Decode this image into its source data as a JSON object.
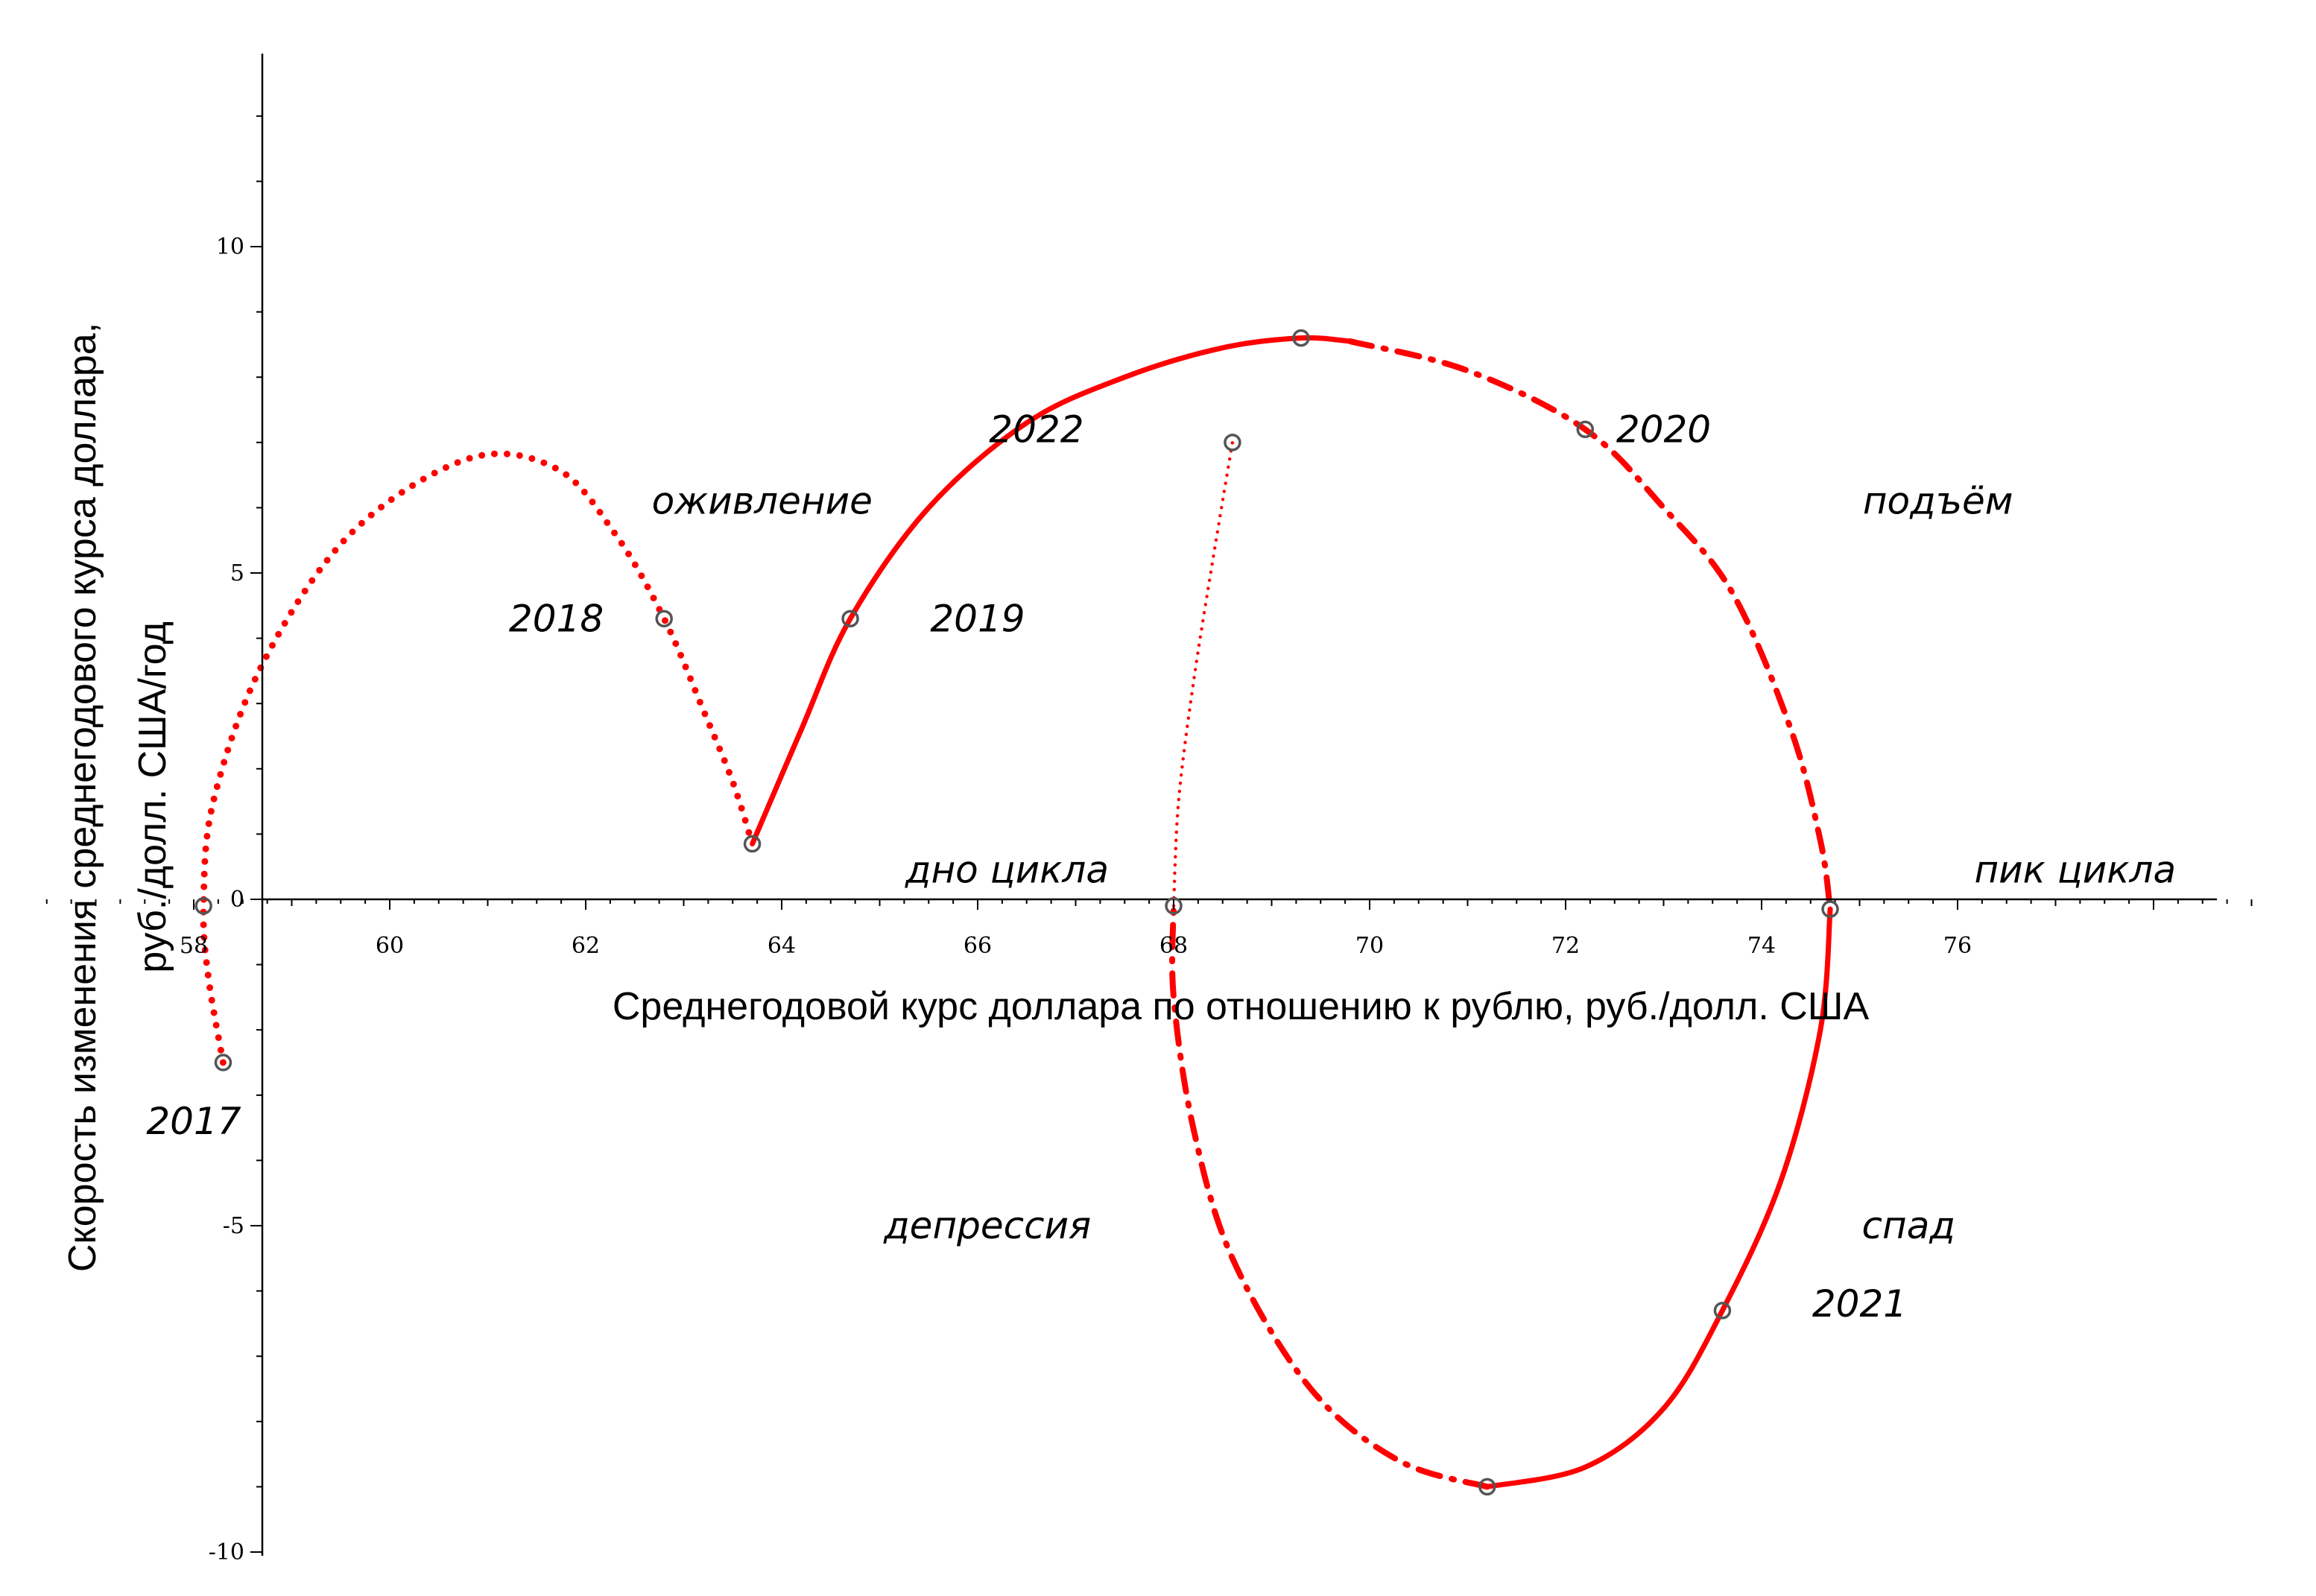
{
  "chart_data": {
    "type": "line",
    "title": "",
    "xlabel": "Среднегодовой курс доллара по отношению к рублю, руб./долл. США",
    "ylabel_lines": [
      "Скорость изменения среднегодового курса доллара,",
      "руб./долл. США/год"
    ],
    "xlim": [
      56.2,
      79.3
    ],
    "ylim": [
      -10,
      13
    ],
    "x_ticks": [
      "58",
      "60",
      "62",
      "64",
      "66",
      "68",
      "70",
      "72",
      "74",
      "76"
    ],
    "y_ticks": [
      "10",
      "5",
      "0",
      "-5",
      "-10"
    ],
    "grid": false,
    "line_color": "#ff0000",
    "marker_color": "#555555",
    "points": [
      {
        "year": "2017",
        "x": 58.3,
        "y": -2.5
      },
      {
        "year": "2018",
        "x": 62.8,
        "y": 4.3
      },
      {
        "year": "2019",
        "x": 64.7,
        "y": 4.3
      },
      {
        "year": "2020",
        "x": 72.2,
        "y": 7.2
      },
      {
        "year": "2021",
        "x": 73.6,
        "y": -6.3
      },
      {
        "year": "2022",
        "x": 68.6,
        "y": 7.0
      }
    ],
    "extra_markers": [
      {
        "x": 58.1,
        "y": -0.1
      },
      {
        "x": 63.7,
        "y": 0.85
      },
      {
        "x": 69.3,
        "y": 8.6
      },
      {
        "x": 74.7,
        "y": -0.15
      },
      {
        "x": 71.2,
        "y": -9.0
      },
      {
        "x": 68.0,
        "y": -0.1
      }
    ],
    "series": [
      {
        "style": "dotted",
        "points": [
          [
            58.3,
            -2.5
          ],
          [
            58.15,
            -1.2
          ],
          [
            58.1,
            -0.1
          ],
          [
            58.2,
            1.5
          ],
          [
            58.7,
            3.6
          ],
          [
            59.6,
            5.6
          ],
          [
            60.8,
            6.75
          ],
          [
            61.7,
            6.6
          ],
          [
            62.3,
            5.6
          ],
          [
            62.8,
            4.3
          ],
          [
            63.2,
            2.9
          ],
          [
            63.5,
            1.8
          ],
          [
            63.7,
            0.85
          ]
        ]
      },
      {
        "style": "solid",
        "points": [
          [
            63.7,
            0.85
          ],
          [
            64.2,
            2.6
          ],
          [
            64.7,
            4.3
          ],
          [
            65.5,
            6.0
          ],
          [
            66.5,
            7.3
          ],
          [
            67.5,
            8.0
          ],
          [
            68.5,
            8.45
          ],
          [
            69.3,
            8.6
          ],
          [
            69.8,
            8.55
          ]
        ]
      },
      {
        "style": "dashdot",
        "points": [
          [
            69.8,
            8.55
          ],
          [
            71.0,
            8.1
          ],
          [
            72.2,
            7.2
          ],
          [
            73.0,
            6.0
          ],
          [
            73.7,
            4.7
          ],
          [
            74.3,
            2.6
          ],
          [
            74.6,
            0.9
          ],
          [
            74.7,
            -0.15
          ]
        ]
      },
      {
        "style": "solid",
        "points": [
          [
            74.7,
            -0.15
          ],
          [
            74.6,
            -2.0
          ],
          [
            74.2,
            -4.3
          ],
          [
            73.6,
            -6.3
          ],
          [
            73.0,
            -7.8
          ],
          [
            72.2,
            -8.7
          ],
          [
            71.2,
            -9.0
          ]
        ]
      },
      {
        "style": "dashdot",
        "points": [
          [
            71.2,
            -9.0
          ],
          [
            70.3,
            -8.6
          ],
          [
            69.4,
            -7.5
          ],
          [
            68.6,
            -5.5
          ],
          [
            68.2,
            -3.5
          ],
          [
            68.0,
            -1.5
          ],
          [
            68.0,
            -0.1
          ]
        ]
      },
      {
        "style": "fine-dotted",
        "points": [
          [
            68.0,
            -0.1
          ],
          [
            68.05,
            1.5
          ],
          [
            68.2,
            3.3
          ],
          [
            68.4,
            5.2
          ],
          [
            68.6,
            7.0
          ]
        ]
      }
    ],
    "annotations": [
      {
        "text": "2017",
        "x": 58.0,
        "y": -3.4
      },
      {
        "text": "2018",
        "x": 61.7,
        "y": 4.3
      },
      {
        "text": "2019",
        "x": 66.0,
        "y": 4.3
      },
      {
        "text": "2020",
        "x": 73.0,
        "y": 7.2
      },
      {
        "text": "2021",
        "x": 75.0,
        "y": -6.2
      },
      {
        "text": "2022",
        "x": 66.6,
        "y": 7.2
      },
      {
        "text": "оживление",
        "x": 63.8,
        "y": 6.1
      },
      {
        "text": "подъём",
        "x": 75.8,
        "y": 6.1
      },
      {
        "text": "дно цикла",
        "x": 66.3,
        "y": 0.45
      },
      {
        "text": "пик цикла",
        "x": 77.2,
        "y": 0.45
      },
      {
        "text": "депрессия",
        "x": 66.1,
        "y": -5.0
      },
      {
        "text": "спад",
        "x": 75.5,
        "y": -5.0
      }
    ]
  }
}
